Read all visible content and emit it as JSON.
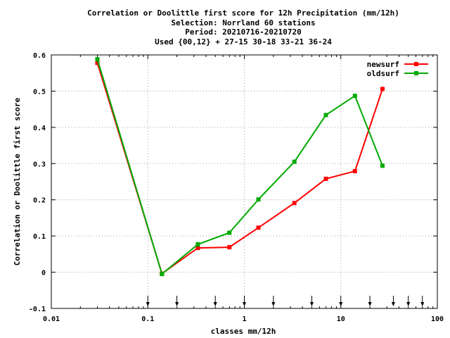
{
  "chart_data": {
    "type": "line",
    "title_lines": [
      "Correlation or Doolittle first score  for 12h Precipitation (mm/12h)",
      "Selection: Norrland     60 stations",
      "Period: 20210716-20210720",
      "Used {00,12} + 27-15 30-18 33-21 36-24"
    ],
    "xlabel": "classes mm/12h",
    "ylabel": "Correlation or Doolittle first score",
    "xscale": "log",
    "xlim": [
      0.01,
      100
    ],
    "ylim": [
      -0.1,
      0.6
    ],
    "x_ticks": [
      0.01,
      0.1,
      1,
      10,
      100
    ],
    "x_tick_labels": [
      "0.01",
      "0.1",
      "1",
      "10",
      "100"
    ],
    "y_ticks": [
      -0.1,
      0,
      0.1,
      0.2,
      0.3,
      0.4,
      0.5,
      0.6
    ],
    "y_tick_labels": [
      "-0.1",
      "0",
      "0.1",
      "0.2",
      "0.3",
      "0.4",
      "0.5",
      "0.6"
    ],
    "grid": true,
    "legend_position": "top-right",
    "class_markers": [
      0.1,
      0.2,
      0.5,
      1,
      2,
      5,
      10,
      20,
      35,
      50,
      70
    ],
    "series": [
      {
        "name": "newsurf",
        "color": "#ff0000",
        "x": [
          0.03,
          0.14,
          0.33,
          0.7,
          1.4,
          3.3,
          7,
          14,
          27
        ],
        "values": [
          0.578,
          -0.004,
          0.067,
          0.069,
          0.123,
          0.191,
          0.258,
          0.279,
          0.506
        ]
      },
      {
        "name": "oldsurf",
        "color": "#00aa00",
        "x": [
          0.03,
          0.14,
          0.33,
          0.7,
          1.4,
          3.3,
          7,
          14,
          27
        ],
        "values": [
          0.588,
          -0.005,
          0.077,
          0.109,
          0.201,
          0.305,
          0.434,
          0.487,
          0.294
        ]
      }
    ]
  }
}
